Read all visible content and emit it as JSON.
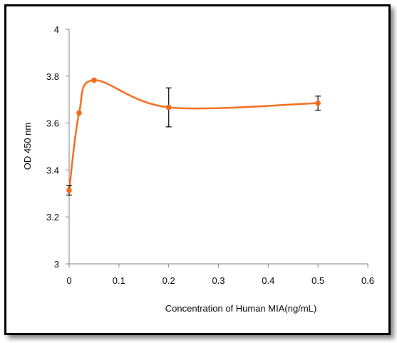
{
  "chart_data": {
    "type": "line",
    "title": "",
    "xlabel": "Concentration of Human MIA(ng/mL)",
    "ylabel": "OD 450 nm",
    "xlim": [
      0,
      0.6
    ],
    "ylim": [
      3,
      4
    ],
    "x_ticks": [
      "0",
      "0.1",
      "0.2",
      "0.3",
      "0.4",
      "0.5",
      "0.6"
    ],
    "y_ticks": [
      "3",
      "3.2",
      "3.4",
      "3.6",
      "3.8",
      "4"
    ],
    "grid": false,
    "legend": "none",
    "series": [
      {
        "color": "#f26a1b",
        "smooth": true,
        "points": [
          {
            "x": 0,
            "y": 3.313,
            "err": 0.02
          },
          {
            "x": 0.02,
            "y": 3.643,
            "err": 0
          },
          {
            "x": 0.05,
            "y": 3.783,
            "err": 0
          },
          {
            "x": 0.2,
            "y": 3.667,
            "err": 0.083
          },
          {
            "x": 0.5,
            "y": 3.685,
            "err": 0.03
          }
        ]
      }
    ]
  }
}
